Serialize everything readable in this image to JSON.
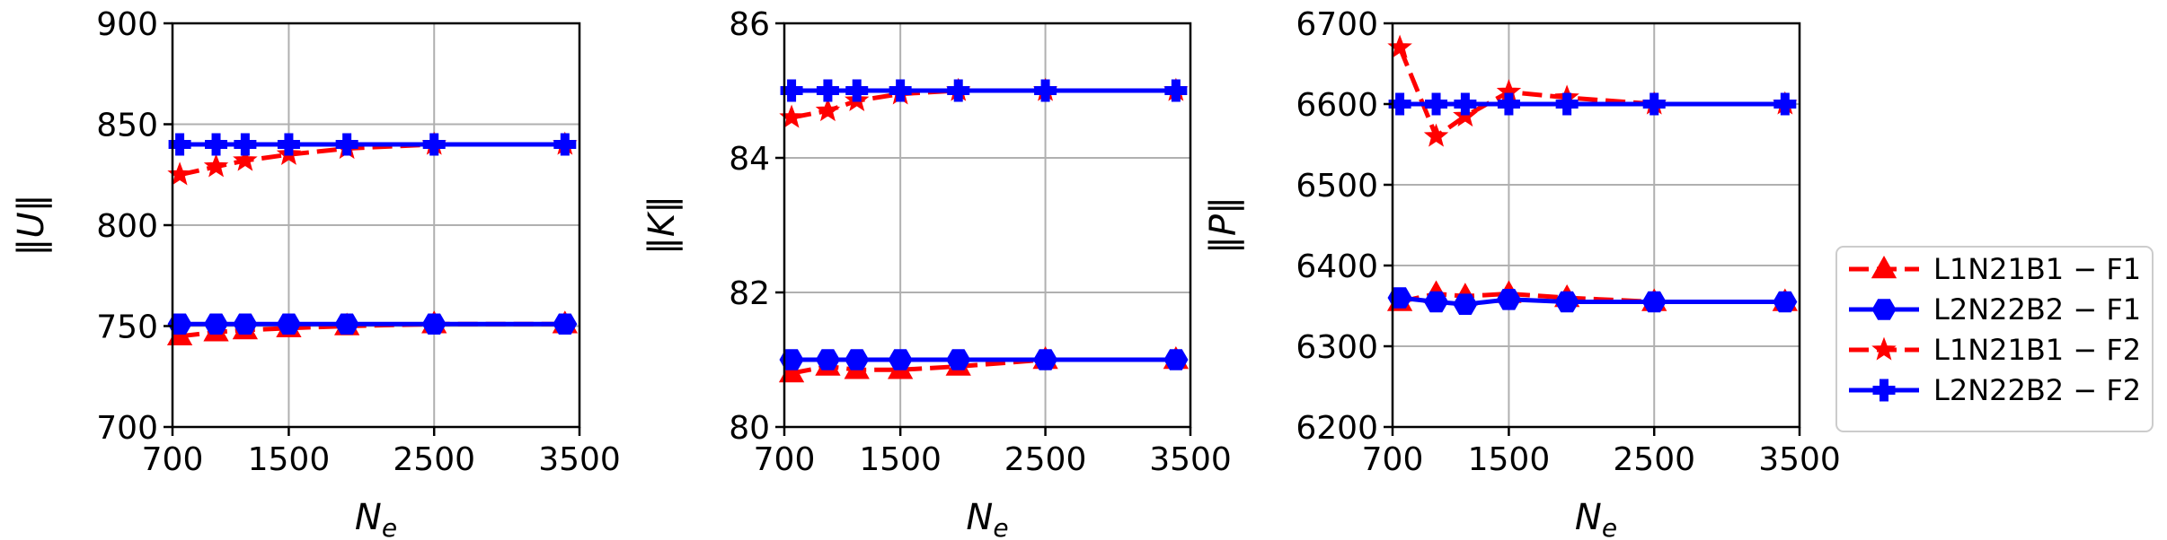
{
  "chart_data": [
    {
      "type": "line",
      "xlabel": "N_e",
      "ylabel": "‖U‖",
      "xlim": [
        700,
        3500
      ],
      "ylim": [
        700,
        900
      ],
      "xticks": [
        700,
        1500,
        2500,
        3500
      ],
      "yticks": [
        700,
        750,
        800,
        850,
        900
      ],
      "grid": true,
      "x": [
        750,
        1000,
        1200,
        1500,
        1900,
        2500,
        3400
      ],
      "series": [
        {
          "name": "L1N21B1 − F1",
          "values": [
            745,
            747,
            748,
            749,
            750,
            751,
            751
          ]
        },
        {
          "name": "L2N22B2 − F1",
          "values": [
            751,
            751,
            751,
            751,
            751,
            751,
            751
          ]
        },
        {
          "name": "L1N21B1 − F2",
          "values": [
            825,
            829,
            832,
            835,
            838,
            840,
            840
          ]
        },
        {
          "name": "L2N22B2 − F2",
          "values": [
            840,
            840,
            840,
            840,
            840,
            840,
            840
          ]
        }
      ]
    },
    {
      "type": "line",
      "xlabel": "N_e",
      "ylabel": "‖K‖",
      "xlim": [
        700,
        3500
      ],
      "ylim": [
        80,
        86
      ],
      "xticks": [
        700,
        1500,
        2500,
        3500
      ],
      "yticks": [
        80,
        82,
        84,
        86
      ],
      "grid": true,
      "x": [
        750,
        1000,
        1200,
        1500,
        1900,
        2500,
        3400
      ],
      "series": [
        {
          "name": "L1N21B1 − F1",
          "values": [
            80.8,
            80.9,
            80.85,
            80.85,
            80.9,
            81.0,
            81.0
          ]
        },
        {
          "name": "L2N22B2 − F1",
          "values": [
            81.0,
            81.0,
            81.0,
            81.0,
            81.0,
            81.0,
            81.0
          ]
        },
        {
          "name": "L1N21B1 − F2",
          "values": [
            84.6,
            84.7,
            84.85,
            84.95,
            85.0,
            85.0,
            85.0
          ]
        },
        {
          "name": "L2N22B2 − F2",
          "values": [
            85.0,
            85.0,
            85.0,
            85.0,
            85.0,
            85.0,
            85.0
          ]
        }
      ]
    },
    {
      "type": "line",
      "xlabel": "N_e",
      "ylabel": "‖P‖",
      "xlim": [
        700,
        3500
      ],
      "ylim": [
        6200,
        6700
      ],
      "xticks": [
        700,
        1500,
        2500,
        3500
      ],
      "yticks": [
        6200,
        6300,
        6400,
        6500,
        6600,
        6700
      ],
      "grid": true,
      "x": [
        750,
        1000,
        1200,
        1500,
        1900,
        2500,
        3400
      ],
      "series": [
        {
          "name": "L1N21B1 − F1",
          "values": [
            6355,
            6365,
            6362,
            6365,
            6360,
            6355,
            6355
          ]
        },
        {
          "name": "L2N22B2 − F1",
          "values": [
            6360,
            6355,
            6352,
            6358,
            6355,
            6355,
            6355
          ]
        },
        {
          "name": "L1N21B1 − F2",
          "values": [
            6670,
            6560,
            6585,
            6615,
            6608,
            6600,
            6600
          ]
        },
        {
          "name": "L2N22B2 − F2",
          "values": [
            6600,
            6600,
            6600,
            6600,
            6600,
            6600,
            6600
          ]
        }
      ]
    }
  ],
  "legend": {
    "placement": "right",
    "entries": [
      {
        "label": "L1N21B1 − F1",
        "color": "#ff0000",
        "marker": "triangle",
        "dash": "dashed"
      },
      {
        "label": "L2N22B2 − F1",
        "color": "#0000ff",
        "marker": "hexagon",
        "dash": "solid"
      },
      {
        "label": "L1N21B1 − F2",
        "color": "#ff0000",
        "marker": "star",
        "dash": "dashed"
      },
      {
        "label": "L2N22B2 − F2",
        "color": "#0000ff",
        "marker": "plus",
        "dash": "solid"
      }
    ]
  }
}
